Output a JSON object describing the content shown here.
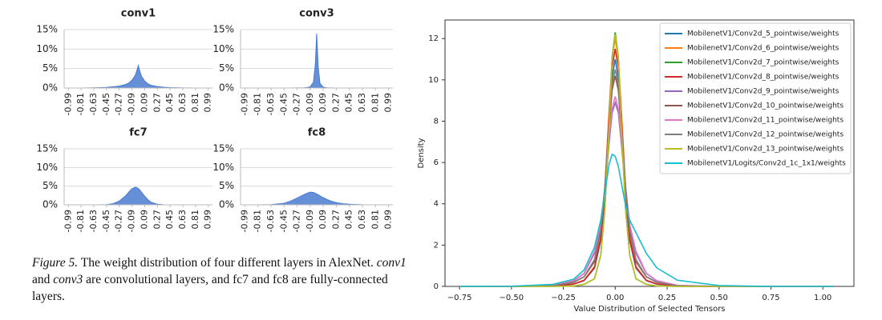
{
  "chart_data": [
    {
      "type": "area",
      "title": "conv1",
      "color": "#4a7bd0",
      "grid": true,
      "x": [
        -0.99,
        -0.81,
        -0.63,
        -0.45,
        -0.36,
        -0.27,
        -0.18,
        -0.135,
        -0.09,
        -0.045,
        -0.02,
        0,
        0.02,
        0.045,
        0.09,
        0.135,
        0.18,
        0.27,
        0.36,
        0.45,
        0.63,
        0.81,
        0.99
      ],
      "values": [
        0,
        0,
        0.05,
        0.15,
        0.3,
        0.5,
        0.9,
        1.3,
        2.0,
        3.2,
        4.5,
        5.8,
        4.4,
        3.0,
        1.8,
        1.1,
        0.7,
        0.35,
        0.2,
        0.1,
        0.03,
        0,
        0
      ],
      "xlim": [
        -1.05,
        1.05
      ],
      "xticks": [
        -0.99,
        -0.81,
        -0.63,
        -0.45,
        -0.27,
        -0.09,
        0.09,
        0.27,
        0.45,
        0.63,
        0.81,
        0.99
      ],
      "ylim": [
        0,
        15
      ],
      "yticks": [
        {
          "value": 0,
          "label": "0%"
        },
        {
          "value": 5,
          "label": "5%"
        },
        {
          "value": 10,
          "label": "10%"
        },
        {
          "value": 15,
          "label": "15%"
        }
      ]
    },
    {
      "type": "area",
      "title": "conv3",
      "color": "#4a7bd0",
      "grid": true,
      "x": [
        -0.99,
        -0.81,
        -0.63,
        -0.45,
        -0.36,
        -0.27,
        -0.18,
        -0.135,
        -0.09,
        -0.045,
        -0.02,
        0,
        0.02,
        0.045,
        0.09,
        0.135,
        0.18,
        0.27,
        0.36,
        0.45,
        0.63,
        0.81,
        0.99
      ],
      "values": [
        0,
        0,
        0,
        0,
        0,
        0.02,
        0.05,
        0.1,
        0.3,
        1.5,
        6,
        14,
        5.5,
        1.2,
        0.2,
        0.05,
        0.02,
        0,
        0,
        0,
        0,
        0,
        0
      ],
      "xlim": [
        -1.05,
        1.05
      ],
      "xticks": [
        -0.99,
        -0.81,
        -0.63,
        -0.45,
        -0.27,
        -0.09,
        0.09,
        0.27,
        0.45,
        0.63,
        0.81,
        0.99
      ],
      "ylim": [
        0,
        15
      ],
      "yticks": [
        {
          "value": 0,
          "label": "0%"
        },
        {
          "value": 5,
          "label": "5%"
        },
        {
          "value": 10,
          "label": "10%"
        },
        {
          "value": 15,
          "label": "15%"
        }
      ]
    },
    {
      "type": "area",
      "title": "fc7",
      "color": "#4a7bd0",
      "grid": true,
      "x": [
        -0.99,
        -0.81,
        -0.63,
        -0.45,
        -0.36,
        -0.27,
        -0.18,
        -0.135,
        -0.09,
        -0.045,
        -0.02,
        0,
        0.02,
        0.045,
        0.09,
        0.135,
        0.18,
        0.27,
        0.36,
        0.45,
        0.63,
        0.81,
        0.99
      ],
      "values": [
        0,
        0,
        0,
        0.05,
        0.3,
        1.0,
        2.4,
        3.4,
        4.3,
        4.7,
        4.6,
        4.4,
        4.0,
        3.4,
        2.3,
        1.4,
        0.7,
        0.15,
        0.03,
        0,
        0,
        0,
        0
      ],
      "xlim": [
        -1.05,
        1.05
      ],
      "xticks": [
        -0.99,
        -0.81,
        -0.63,
        -0.45,
        -0.27,
        -0.09,
        0.09,
        0.27,
        0.45,
        0.63,
        0.81,
        0.99
      ],
      "ylim": [
        0,
        15
      ],
      "yticks": [
        {
          "value": 0,
          "label": "0%"
        },
        {
          "value": 5,
          "label": "5%"
        },
        {
          "value": 10,
          "label": "10%"
        },
        {
          "value": 15,
          "label": "15%"
        }
      ]
    },
    {
      "type": "area",
      "title": "fc8",
      "color": "#4a7bd0",
      "grid": true,
      "x": [
        -0.99,
        -0.81,
        -0.63,
        -0.45,
        -0.36,
        -0.27,
        -0.18,
        -0.135,
        -0.09,
        -0.045,
        -0.02,
        0,
        0.02,
        0.045,
        0.09,
        0.135,
        0.18,
        0.27,
        0.36,
        0.45,
        0.63,
        0.81,
        0.99
      ],
      "values": [
        0,
        0,
        0.05,
        0.4,
        1.0,
        1.8,
        2.7,
        3.1,
        3.4,
        3.3,
        3.1,
        2.9,
        2.7,
        2.4,
        1.9,
        1.5,
        1.1,
        0.6,
        0.3,
        0.15,
        0.03,
        0,
        0
      ],
      "xlim": [
        -1.05,
        1.05
      ],
      "xticks": [
        -0.99,
        -0.81,
        -0.63,
        -0.45,
        -0.27,
        -0.09,
        0.09,
        0.27,
        0.45,
        0.63,
        0.81,
        0.99
      ],
      "ylim": [
        0,
        15
      ],
      "yticks": [
        {
          "value": 0,
          "label": "0%"
        },
        {
          "value": 5,
          "label": "5%"
        },
        {
          "value": 10,
          "label": "10%"
        },
        {
          "value": 15,
          "label": "15%"
        }
      ]
    },
    {
      "type": "line",
      "xlabel": "Value Distribution of Selected Tensors",
      "ylabel": "Density",
      "legend": "upper right",
      "grid": false,
      "x": [
        -0.75,
        -0.5,
        -0.3,
        -0.2,
        -0.15,
        -0.1,
        -0.07,
        -0.05,
        -0.03,
        -0.015,
        0,
        0.015,
        0.03,
        0.05,
        0.07,
        0.1,
        0.15,
        0.2,
        0.3,
        0.5,
        0.75,
        1.05
      ],
      "series": [
        {
          "name": "MobilenetV1/Conv2d_5_pointwise/weights",
          "color": "#1f77b4",
          "values": [
            0,
            0,
            0.02,
            0.11,
            0.28,
            0.88,
            2.2,
            4.4,
            7.7,
            10.1,
            11.0,
            10.1,
            7.7,
            4.4,
            2.2,
            0.88,
            0.28,
            0.11,
            0.02,
            0,
            0,
            0
          ]
        },
        {
          "name": "MobilenetV1/Conv2d_6_pointwise/weights",
          "color": "#ff7f0e",
          "values": [
            0,
            0,
            0.02,
            0.12,
            0.3,
            0.96,
            2.4,
            4.8,
            8.4,
            11.0,
            12.0,
            11.0,
            8.4,
            4.8,
            2.4,
            0.96,
            0.3,
            0.12,
            0.02,
            0,
            0,
            0
          ]
        },
        {
          "name": "MobilenetV1/Conv2d_7_pointwise/weights",
          "color": "#2ca02c",
          "values": [
            0,
            0,
            0,
            0.02,
            0.1,
            0.37,
            1.5,
            3.7,
            7.6,
            11.1,
            12.3,
            11.1,
            7.6,
            3.7,
            1.5,
            0.37,
            0.1,
            0.02,
            0,
            0,
            0,
            0
          ]
        },
        {
          "name": "MobilenetV1/Conv2d_8_pointwise/weights",
          "color": "#d62728",
          "values": [
            0,
            0,
            0.02,
            0.12,
            0.29,
            0.92,
            2.3,
            4.6,
            8.1,
            10.6,
            11.5,
            10.6,
            8.1,
            4.6,
            2.3,
            0.92,
            0.29,
            0.12,
            0.02,
            0,
            0,
            0
          ]
        },
        {
          "name": "MobilenetV1/Conv2d_9_pointwise/weights",
          "color": "#9467bd",
          "values": [
            0,
            0,
            0.04,
            0.27,
            0.62,
            1.6,
            2.9,
            4.6,
            6.9,
            8.4,
            8.9,
            8.4,
            6.9,
            4.6,
            2.9,
            1.6,
            0.62,
            0.27,
            0.04,
            0,
            0,
            0
          ]
        },
        {
          "name": "MobilenetV1/Conv2d_10_pointwise/weights",
          "color": "#8c564b",
          "values": [
            0,
            0,
            0.03,
            0.2,
            0.46,
            1.2,
            2.7,
            4.7,
            7.5,
            9.5,
            10.2,
            9.5,
            7.5,
            4.7,
            2.7,
            1.2,
            0.46,
            0.2,
            0.03,
            0,
            0,
            0
          ]
        },
        {
          "name": "MobilenetV1/Conv2d_11_pointwise/weights",
          "color": "#e377c2",
          "values": [
            0,
            0,
            0.05,
            0.28,
            0.64,
            1.7,
            3.0,
            4.8,
            7.2,
            8.6,
            9.2,
            8.6,
            7.2,
            4.8,
            3.0,
            1.7,
            0.64,
            0.28,
            0.05,
            0,
            0,
            0
          ]
        },
        {
          "name": "MobilenetV1/Conv2d_12_pointwise/weights",
          "color": "#7f7f7f",
          "values": [
            0,
            0,
            0.03,
            0.21,
            0.47,
            1.3,
            2.7,
            4.8,
            7.8,
            9.8,
            10.5,
            9.8,
            7.8,
            4.8,
            2.7,
            1.3,
            0.47,
            0.21,
            0.03,
            0,
            0,
            0
          ]
        },
        {
          "name": "MobilenetV1/Conv2d_13_pointwise/weights",
          "color": "#bcbd22",
          "values": [
            0,
            0,
            0,
            0.02,
            0.1,
            0.37,
            1.5,
            3.7,
            7.6,
            11.0,
            12.2,
            11.0,
            7.6,
            3.7,
            1.5,
            0.37,
            0.1,
            0.02,
            0,
            0,
            0,
            0
          ]
        },
        {
          "name": "MobilenetV1/Logits/Conv2d_1c_1x1/weights",
          "color": "#17becf",
          "values": [
            0,
            0.01,
            0.1,
            0.35,
            0.8,
            1.9,
            3.2,
            4.5,
            5.9,
            6.4,
            6.3,
            5.8,
            5.0,
            3.9,
            3.2,
            2.6,
            1.6,
            0.9,
            0.3,
            0.04,
            0,
            0
          ]
        }
      ],
      "xlim": [
        -0.82,
        1.15
      ],
      "xticks": [
        {
          "value": -0.75,
          "label": "−0.75"
        },
        {
          "value": -0.5,
          "label": "−0.50"
        },
        {
          "value": -0.25,
          "label": "−0.25"
        },
        {
          "value": 0,
          "label": "0.00"
        },
        {
          "value": 0.25,
          "label": "0.25"
        },
        {
          "value": 0.5,
          "label": "0.50"
        },
        {
          "value": 0.75,
          "label": "0.75"
        },
        {
          "value": 1,
          "label": "1.00"
        }
      ],
      "ylim": [
        0,
        12.9
      ],
      "yticks": [
        0,
        2,
        4,
        6,
        8,
        10,
        12
      ]
    }
  ],
  "caption": [
    "Figure 5.",
    "The weight distribution of four different layers in AlexNet.",
    "conv1",
    "and",
    "conv3",
    "are convolutional layers, and fc7 and fc8 are fully-connected layers."
  ]
}
